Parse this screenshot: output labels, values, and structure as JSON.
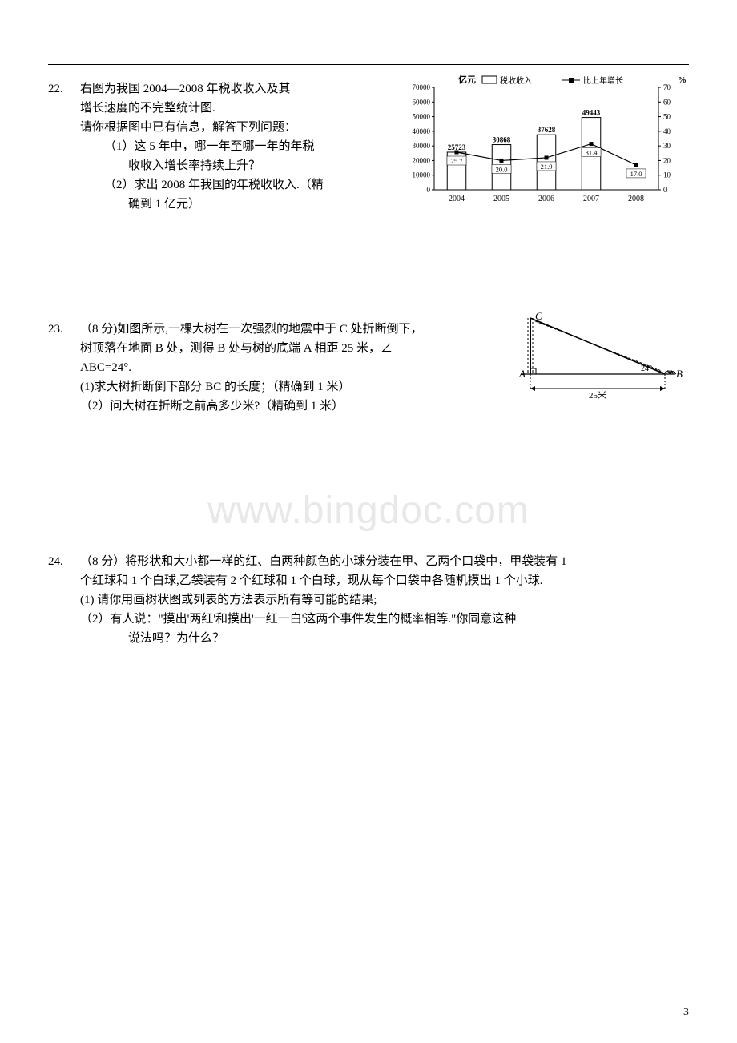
{
  "page_number": "3",
  "watermark": "www.bingdoc.com",
  "problems": [
    {
      "num": "22.",
      "lines": [
        {
          "cls": "indent1",
          "text": "右图为我国 2004—2008 年税收收入及其"
        },
        {
          "cls": "indent1",
          "text": "增长速度的不完整统计图."
        },
        {
          "cls": "indent1",
          "text": "请你根据图中已有信息，解答下列问题："
        },
        {
          "cls": "indent2",
          "text": "（1）这 5 年中，哪一年至哪一年的年税"
        },
        {
          "cls": "indent3",
          "text": "收收入增长率持续上升？"
        },
        {
          "cls": "indent2",
          "text": "（2）求出 2008 年我国的年税收收入.（精"
        },
        {
          "cls": "indent3",
          "text": "确到 1 亿元）"
        }
      ]
    },
    {
      "num": "23.",
      "lines": [
        {
          "cls": "indent1",
          "text": "（8 分)如图所示,一棵大树在一次强烈的地震中于 C 处折断倒下，"
        },
        {
          "cls": "indent1",
          "text": "树顶落在地面 B 处，测得 B 处与树的底端 A 相距 25 米，∠"
        },
        {
          "cls": "indent1",
          "text": "ABC=24°."
        },
        {
          "cls": "indent1",
          "text": "(1)求大树折断倒下部分 BC 的长度；（精确到 1 米）"
        },
        {
          "cls": "indent1",
          "text": "（2）问大树在折断之前高多少米?（精确到 1 米）"
        }
      ]
    },
    {
      "num": "24.",
      "lines": [
        {
          "cls": "indent1",
          "text": "（8 分）将形状和大小都一样的红、白两种颜色的小球分装在甲、乙两个口袋中，甲袋装有 1"
        },
        {
          "cls": "indent1",
          "text": "个红球和 1 个白球,乙袋装有 2 个红球和 1 个白球，现从每个口袋中各随机摸出 1 个小球."
        },
        {
          "cls": "indent1",
          "text": "(1) 请你用画树状图或列表的方法表示所有等可能的结果;"
        },
        {
          "cls": "indent1",
          "text": "（2）有人说：\"摸出'两红'和摸出'一红一白'这两个事件发生的概率相等.\"你同意这种"
        },
        {
          "cls": "indent3",
          "text": "说法吗？为什么？"
        }
      ]
    }
  ],
  "chart": {
    "title_left": "亿元",
    "title_right": "%",
    "legend_bar": "税收收入",
    "legend_line": "比上年增长",
    "y_left_ticks": [
      "70000",
      "60000",
      "50000",
      "40000",
      "30000",
      "20000",
      "10000",
      "0"
    ],
    "y_right_ticks": [
      "70",
      "60",
      "50",
      "40",
      "30",
      "20",
      "10",
      "0"
    ],
    "categories": [
      "2004",
      "2005",
      "2006",
      "2007",
      "2008"
    ],
    "bar_values": [
      25723,
      30868,
      37628,
      49443,
      null
    ],
    "bar_labels": [
      "25723",
      "30868",
      "37628",
      "49443",
      ""
    ],
    "line_values": [
      25.7,
      20.0,
      21.9,
      31.4,
      17.0
    ],
    "line_labels": [
      "25.7",
      "20.0",
      "21.9",
      "31.4",
      "17.0"
    ],
    "y_left_max": 70000,
    "y_right_max": 70,
    "bar_color": "#ffffff",
    "bar_stroke": "#000000",
    "line_color": "#000000",
    "axis_color": "#000000",
    "font_size": 9
  },
  "tree": {
    "label_A": "A",
    "label_B": "B",
    "label_C": "C",
    "angle_label": "24°",
    "base_label": "25米",
    "stroke": "#000000"
  }
}
